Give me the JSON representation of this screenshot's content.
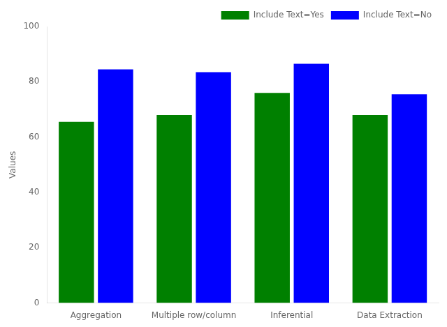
{
  "chart_data": {
    "type": "bar",
    "categories": [
      "Aggregation",
      "Multiple row/column",
      "Inferential",
      "Data Extraction"
    ],
    "series": [
      {
        "name": "Include Text=Yes",
        "color": "#008000",
        "values": [
          65.5,
          68.0,
          76.0,
          68.0
        ]
      },
      {
        "name": "Include Text=No",
        "color": "#0000FF",
        "values": [
          84.5,
          83.5,
          86.5,
          75.5
        ]
      }
    ],
    "ylabel": "Values",
    "ylim": [
      0,
      100
    ],
    "yticks": [
      0,
      20,
      40,
      60,
      80,
      100
    ],
    "legend": "upper right",
    "grid": false
  }
}
